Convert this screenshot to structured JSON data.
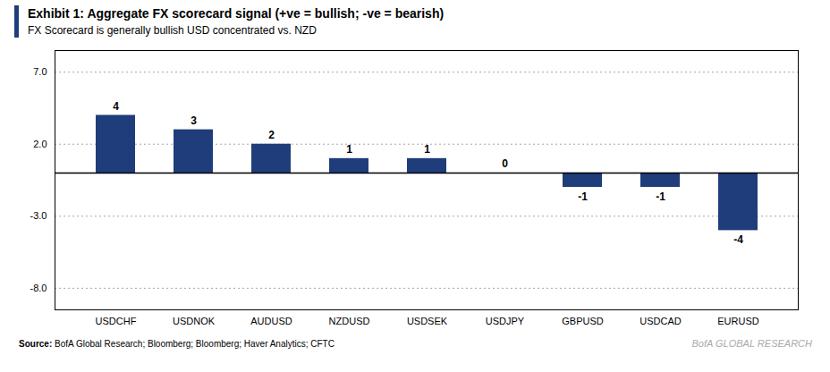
{
  "chart_data": {
    "type": "bar",
    "title": "Exhibit 1: Aggregate FX scorecard signal (+ve = bullish; -ve = bearish)",
    "subtitle": "FX Scorecard is generally bullish USD concentrated vs. NZD",
    "source_label": "Source:",
    "source_text": "BofA Global Research; Bloomberg; Bloomberg; Haver Analytics; CFTC",
    "branding": "BofA GLOBAL RESEARCH",
    "categories": [
      "USDCHF",
      "USDNOK",
      "AUDUSD",
      "NZDUSD",
      "USDSEK",
      "USDJPY",
      "GBPUSD",
      "USDCAD",
      "EURUSD"
    ],
    "values": [
      4,
      3,
      2,
      1,
      1,
      0,
      -1,
      -1,
      -4
    ],
    "color": "#1f3d7a",
    "ylim": [
      -9.5,
      8.5
    ],
    "yticks": [
      {
        "value": 7,
        "label": "7.0"
      },
      {
        "value": 2,
        "label": "2.0"
      },
      {
        "value": -3,
        "label": "-3.0"
      },
      {
        "value": -8,
        "label": "-8.0"
      }
    ],
    "grid": true,
    "data_labels": true
  }
}
